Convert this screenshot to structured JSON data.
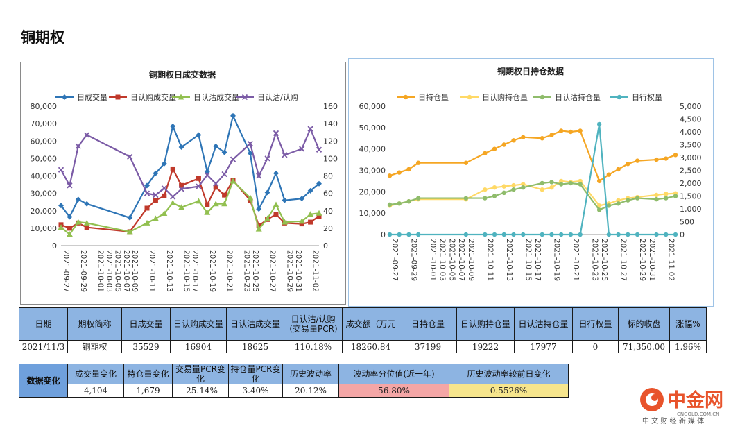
{
  "page": {
    "title": "铜期权"
  },
  "chart_data": [
    {
      "type": "line",
      "title": "铜期权日成交数据",
      "x": [
        "2021-09-27",
        "2021-09-28",
        "2021-09-29",
        "2021-09-30",
        "2021-10-01",
        "2021-10-03",
        "2021-10-05",
        "2021-10-07",
        "2021-10-09",
        "2021-10-10",
        "2021-10-11",
        "2021-10-12",
        "2021-10-13",
        "2021-10-14",
        "2021-10-15",
        "2021-10-17",
        "2021-10-18",
        "2021-10-19",
        "2021-10-20",
        "2021-10-21",
        "2021-10-22",
        "2021-10-23",
        "2021-10-25",
        "2021-10-26",
        "2021-10-27",
        "2021-10-28",
        "2021-10-29",
        "2021-10-31",
        "2021-11-01",
        "2021-11-02",
        "2021-11-03"
      ],
      "x_tick_labels": [
        "2021-09-27",
        "2021-09-29",
        "2021-10-01",
        "2021-10-03",
        "2021-10-05",
        "2021-10-07",
        "2021-10-09",
        "2021-10-11",
        "2021-10-13",
        "2021-10-15",
        "2021-10-17",
        "2021-10-19",
        "2021-10-21",
        "2021-10-23",
        "2021-10-25",
        "2021-10-27",
        "2021-10-29",
        "2021-10-31",
        "2021-11-02"
      ],
      "ylim": [
        0,
        80000
      ],
      "y_ticks": [
        "0",
        "10,000",
        "20,000",
        "30,000",
        "40,000",
        "50,000",
        "60,000",
        "70,000",
        "80,000"
      ],
      "y2lim": [
        0,
        160
      ],
      "y2_ticks": [
        "0",
        "20",
        "40",
        "60",
        "80",
        "100",
        "120",
        "140",
        "160"
      ],
      "legend_position": "top",
      "series": [
        {
          "name": "日成交量",
          "axis": "left",
          "color": "#2e75b6",
          "marker": "diamond",
          "points": [
            [
              "2021-09-27",
              23000
            ],
            [
              "2021-09-28",
              16500
            ],
            [
              "2021-09-29",
              26500
            ],
            [
              "2021-09-30",
              24000
            ],
            [
              "2021-10-09",
              16000
            ],
            [
              "2021-10-11",
              34500
            ],
            [
              "2021-10-12",
              41500
            ],
            [
              "2021-10-13",
              47000
            ],
            [
              "2021-10-14",
              68500
            ],
            [
              "2021-10-15",
              56500
            ],
            [
              "2021-10-18",
              63500
            ],
            [
              "2021-10-19",
              42500
            ],
            [
              "2021-10-20",
              57000
            ],
            [
              "2021-10-21",
              53500
            ],
            [
              "2021-10-22",
              74500
            ],
            [
              "2021-10-25",
              53000
            ],
            [
              "2021-10-26",
              21000
            ],
            [
              "2021-10-27",
              30500
            ],
            [
              "2021-10-28",
              41500
            ],
            [
              "2021-10-29",
              26000
            ],
            [
              "2021-11-01",
              27000
            ],
            [
              "2021-11-02",
              31500
            ],
            [
              "2021-11-03",
              35529
            ]
          ]
        },
        {
          "name": "日认购成交量",
          "axis": "left",
          "color": "#c0392b",
          "marker": "square",
          "points": [
            [
              "2021-09-27",
              12000
            ],
            [
              "2021-09-28",
              10000
            ],
            [
              "2021-09-29",
              13000
            ],
            [
              "2021-09-30",
              10500
            ],
            [
              "2021-10-09",
              8000
            ],
            [
              "2021-10-11",
              21500
            ],
            [
              "2021-10-12",
              26000
            ],
            [
              "2021-10-13",
              28500
            ],
            [
              "2021-10-14",
              44000
            ],
            [
              "2021-10-15",
              34500
            ],
            [
              "2021-10-18",
              38500
            ],
            [
              "2021-10-19",
              23500
            ],
            [
              "2021-10-20",
              33500
            ],
            [
              "2021-10-21",
              29000
            ],
            [
              "2021-10-22",
              37500
            ],
            [
              "2021-10-25",
              26000
            ],
            [
              "2021-10-26",
              11500
            ],
            [
              "2021-10-27",
              15000
            ],
            [
              "2021-10-28",
              18000
            ],
            [
              "2021-10-29",
              13000
            ],
            [
              "2021-11-01",
              12500
            ],
            [
              "2021-11-02",
              13500
            ],
            [
              "2021-11-03",
              16904
            ]
          ]
        },
        {
          "name": "日认沽成交量",
          "axis": "left",
          "color": "#92c050",
          "marker": "triangle",
          "points": [
            [
              "2021-09-27",
              10500
            ],
            [
              "2021-09-28",
              6500
            ],
            [
              "2021-09-29",
              13500
            ],
            [
              "2021-09-30",
              13000
            ],
            [
              "2021-10-09",
              8000
            ],
            [
              "2021-10-11",
              13000
            ],
            [
              "2021-10-12",
              15500
            ],
            [
              "2021-10-13",
              18500
            ],
            [
              "2021-10-14",
              24500
            ],
            [
              "2021-10-15",
              22000
            ],
            [
              "2021-10-18",
              25500
            ],
            [
              "2021-10-19",
              19000
            ],
            [
              "2021-10-20",
              24000
            ],
            [
              "2021-10-21",
              24000
            ],
            [
              "2021-10-22",
              37000
            ],
            [
              "2021-10-25",
              27500
            ],
            [
              "2021-10-26",
              9500
            ],
            [
              "2021-10-27",
              15500
            ],
            [
              "2021-10-28",
              23500
            ],
            [
              "2021-10-29",
              13500
            ],
            [
              "2021-11-01",
              14000
            ],
            [
              "2021-11-02",
              18000
            ],
            [
              "2021-11-03",
              18625
            ]
          ]
        },
        {
          "name": "日认沽/认购",
          "axis": "right",
          "color": "#7b5ba6",
          "marker": "x",
          "points": [
            [
              "2021-09-27",
              87
            ],
            [
              "2021-09-28",
              69
            ],
            [
              "2021-09-29",
              114
            ],
            [
              "2021-09-30",
              127
            ],
            [
              "2021-10-09",
              102
            ],
            [
              "2021-10-11",
              60
            ],
            [
              "2021-10-12",
              58
            ],
            [
              "2021-10-13",
              66
            ],
            [
              "2021-10-14",
              56
            ],
            [
              "2021-10-15",
              65
            ],
            [
              "2021-10-18",
              68
            ],
            [
              "2021-10-19",
              81
            ],
            [
              "2021-10-20",
              71
            ],
            [
              "2021-10-21",
              82
            ],
            [
              "2021-10-22",
              99
            ],
            [
              "2021-10-25",
              117
            ],
            [
              "2021-10-26",
              80
            ],
            [
              "2021-10-27",
              100
            ],
            [
              "2021-10-28",
              129
            ],
            [
              "2021-10-29",
              104
            ],
            [
              "2021-11-01",
              111
            ],
            [
              "2021-11-02",
              134
            ],
            [
              "2021-11-03",
              110
            ]
          ]
        }
      ]
    },
    {
      "type": "line",
      "title": "铜期权日持仓数据",
      "x": [
        "2021-09-27",
        "2021-09-28",
        "2021-09-29",
        "2021-09-30",
        "2021-10-01",
        "2021-10-03",
        "2021-10-05",
        "2021-10-07",
        "2021-10-09",
        "2021-10-10",
        "2021-10-11",
        "2021-10-12",
        "2021-10-13",
        "2021-10-14",
        "2021-10-15",
        "2021-10-17",
        "2021-10-18",
        "2021-10-19",
        "2021-10-20",
        "2021-10-21",
        "2021-10-22",
        "2021-10-23",
        "2021-10-25",
        "2021-10-26",
        "2021-10-27",
        "2021-10-28",
        "2021-10-29",
        "2021-10-31",
        "2021-11-01",
        "2021-11-02",
        "2021-11-03"
      ],
      "x_tick_labels": [
        "2021-09-27",
        "2021-09-29",
        "2021-10-01",
        "2021-10-03",
        "2021-10-05",
        "2021-10-07",
        "2021-10-09",
        "2021-10-11",
        "2021-10-13",
        "2021-10-15",
        "2021-10-17",
        "2021-10-19",
        "2021-10-21",
        "2021-10-23",
        "2021-10-25",
        "2021-10-27",
        "2021-10-29",
        "2021-10-31",
        "2021-11-02"
      ],
      "ylim": [
        0,
        60000
      ],
      "y_ticks": [
        "0",
        "10,000",
        "20,000",
        "30,000",
        "40,000",
        "50,000",
        "60,000"
      ],
      "y2lim": [
        0,
        5000
      ],
      "y2_ticks": [
        "0",
        "500",
        "1,000",
        "1,500",
        "2,000",
        "2,500",
        "3,000",
        "3,500",
        "4,000",
        "4,500",
        "5,000"
      ],
      "legend_position": "top",
      "series": [
        {
          "name": "日持仓量",
          "axis": "left",
          "color": "#f5a623",
          "marker": "circle",
          "points": [
            [
              "2021-09-27",
              27500
            ],
            [
              "2021-09-28",
              29000
            ],
            [
              "2021-09-29",
              30500
            ],
            [
              "2021-09-30",
              33500
            ],
            [
              "2021-10-09",
              33500
            ],
            [
              "2021-10-11",
              38000
            ],
            [
              "2021-10-12",
              40000
            ],
            [
              "2021-10-13",
              42000
            ],
            [
              "2021-10-14",
              44000
            ],
            [
              "2021-10-15",
              45500
            ],
            [
              "2021-10-18",
              45000
            ],
            [
              "2021-10-19",
              46500
            ],
            [
              "2021-10-20",
              48500
            ],
            [
              "2021-10-21",
              48000
            ],
            [
              "2021-10-22",
              48500
            ],
            [
              "2021-10-25",
              25000
            ],
            [
              "2021-10-26",
              28000
            ],
            [
              "2021-10-27",
              30500
            ],
            [
              "2021-10-28",
              33000
            ],
            [
              "2021-10-29",
              34500
            ],
            [
              "2021-11-01",
              35000
            ],
            [
              "2021-11-02",
              35500
            ],
            [
              "2021-11-03",
              37199
            ]
          ]
        },
        {
          "name": "日认购持仓量",
          "axis": "left",
          "color": "#ffd966",
          "marker": "circle",
          "points": [
            [
              "2021-09-27",
              13500
            ],
            [
              "2021-09-28",
              14500
            ],
            [
              "2021-09-29",
              15500
            ],
            [
              "2021-09-30",
              16500
            ],
            [
              "2021-10-09",
              16500
            ],
            [
              "2021-10-11",
              21000
            ],
            [
              "2021-10-12",
              22000
            ],
            [
              "2021-10-13",
              22500
            ],
            [
              "2021-10-14",
              23000
            ],
            [
              "2021-10-15",
              23500
            ],
            [
              "2021-10-18",
              21000
            ],
            [
              "2021-10-19",
              22000
            ],
            [
              "2021-10-20",
              25000
            ],
            [
              "2021-10-21",
              24500
            ],
            [
              "2021-10-22",
              25000
            ],
            [
              "2021-10-25",
              13500
            ],
            [
              "2021-10-26",
              14500
            ],
            [
              "2021-10-27",
              16000
            ],
            [
              "2021-10-28",
              17000
            ],
            [
              "2021-10-29",
              17500
            ],
            [
              "2021-11-01",
              18500
            ],
            [
              "2021-11-02",
              19000
            ],
            [
              "2021-11-03",
              19222
            ]
          ]
        },
        {
          "name": "日认沽持仓量",
          "axis": "left",
          "color": "#8fbc6b",
          "marker": "circle",
          "points": [
            [
              "2021-09-27",
              14000
            ],
            [
              "2021-09-28",
              14500
            ],
            [
              "2021-09-29",
              15500
            ],
            [
              "2021-09-30",
              17000
            ],
            [
              "2021-10-09",
              17000
            ],
            [
              "2021-10-11",
              17000
            ],
            [
              "2021-10-12",
              18000
            ],
            [
              "2021-10-13",
              19500
            ],
            [
              "2021-10-14",
              21000
            ],
            [
              "2021-10-15",
              22000
            ],
            [
              "2021-10-18",
              24000
            ],
            [
              "2021-10-19",
              24500
            ],
            [
              "2021-10-20",
              23500
            ],
            [
              "2021-10-21",
              24000
            ],
            [
              "2021-10-22",
              23500
            ],
            [
              "2021-10-25",
              11500
            ],
            [
              "2021-10-26",
              13500
            ],
            [
              "2021-10-27",
              14500
            ],
            [
              "2021-10-28",
              16000
            ],
            [
              "2021-10-29",
              17000
            ],
            [
              "2021-11-01",
              16500
            ],
            [
              "2021-11-02",
              17000
            ],
            [
              "2021-11-03",
              17977
            ]
          ]
        },
        {
          "name": "日行权量",
          "axis": "right",
          "color": "#4fb3bf",
          "marker": "circle",
          "points": [
            [
              "2021-09-27",
              0
            ],
            [
              "2021-09-28",
              0
            ],
            [
              "2021-09-29",
              0
            ],
            [
              "2021-09-30",
              0
            ],
            [
              "2021-10-09",
              0
            ],
            [
              "2021-10-11",
              0
            ],
            [
              "2021-10-12",
              0
            ],
            [
              "2021-10-13",
              0
            ],
            [
              "2021-10-14",
              0
            ],
            [
              "2021-10-15",
              0
            ],
            [
              "2021-10-18",
              0
            ],
            [
              "2021-10-19",
              0
            ],
            [
              "2021-10-20",
              0
            ],
            [
              "2021-10-21",
              0
            ],
            [
              "2021-10-22",
              0
            ],
            [
              "2021-10-25",
              4300
            ],
            [
              "2021-10-26",
              0
            ],
            [
              "2021-10-27",
              0
            ],
            [
              "2021-10-28",
              0
            ],
            [
              "2021-10-29",
              0
            ],
            [
              "2021-11-01",
              0
            ],
            [
              "2021-11-02",
              0
            ],
            [
              "2021-11-03",
              0
            ]
          ]
        }
      ]
    }
  ],
  "table1": {
    "headers": [
      "日期",
      "期权简称",
      "日成交量",
      "日认购成交量",
      "日认沽成交量",
      "日认沽/认购（交易量PCR）",
      "成交额（万元",
      "日持仓量",
      "日认购持仓量",
      "日认沽持仓量",
      "日行权量",
      "标的收盘",
      "涨幅%"
    ],
    "row": [
      "2021/11/3",
      "铜期权",
      "35529",
      "16904",
      "18625",
      "110.18%",
      "18260.84",
      "37199",
      "19222",
      "17977",
      "0",
      "71,350.00",
      "1.96%"
    ]
  },
  "table2": {
    "label": "数据变化",
    "headers": [
      "成交量变化",
      "持仓量变化",
      "交易量PCR变化",
      "持仓量PCR变化",
      "历史波动率",
      "波动率分位值(近一年)",
      "历史波动率较前日变化"
    ],
    "row": [
      "4,104",
      "1,679",
      "-25.14%",
      "3.40%",
      "20.12%",
      "56.80%",
      "0.5526%"
    ]
  },
  "logo": {
    "name": "中金网",
    "site": "CNGOLD.COM.CN",
    "slogan": "中 文 财 经 新 媒 体",
    "color": "#e8532b"
  }
}
